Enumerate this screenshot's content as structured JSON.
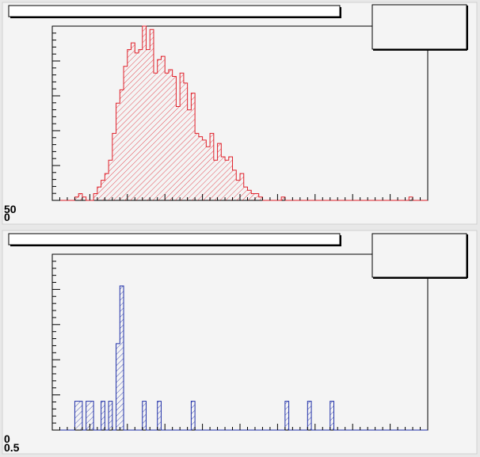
{
  "chart_data": [
    {
      "type": "histogram",
      "title": "",
      "xlabel": "",
      "ylabel": "",
      "fill_pattern": "diagonal-hatch",
      "color": "#e0202a",
      "legend": "top-right",
      "legend_text": "",
      "x_axis_labels_visible": false,
      "y_axis_labels": [
        "50",
        "0"
      ],
      "bin_count": 100,
      "ylim": [
        0,
        52
      ],
      "values": [
        0,
        0,
        0,
        0,
        0,
        0,
        1,
        2,
        1,
        0,
        0,
        2,
        4,
        6,
        8,
        12,
        20,
        29,
        33,
        40,
        45,
        47,
        44,
        45,
        52,
        45,
        51,
        38,
        42,
        43,
        38,
        39,
        37,
        28,
        38,
        35,
        27,
        32,
        20,
        19,
        18,
        16,
        20,
        12,
        17,
        13,
        12,
        13,
        9,
        6,
        8,
        4,
        3,
        2,
        2,
        1,
        0,
        0,
        0,
        0,
        0,
        1,
        0,
        0,
        0,
        0,
        0,
        0,
        0,
        0,
        0,
        0,
        0,
        0,
        0,
        0,
        0,
        0,
        0,
        0,
        0,
        0,
        0,
        0,
        0,
        0,
        0,
        0,
        0,
        0,
        0,
        0,
        0,
        0,
        0,
        1,
        0,
        0,
        0,
        0
      ]
    },
    {
      "type": "histogram",
      "title": "",
      "xlabel": "",
      "ylabel": "",
      "fill_pattern": "diagonal-hatch",
      "color": "#1f2fa8",
      "legend": "top-right",
      "legend_text": "",
      "x_axis_labels_visible": false,
      "y_axis_labels": [
        "0",
        "0.5"
      ],
      "bin_count": 100,
      "ylim": [
        0,
        6.1
      ],
      "values": [
        0,
        0,
        0,
        0,
        0,
        0,
        1,
        1,
        0,
        1,
        1,
        0,
        0,
        1,
        0,
        1,
        0,
        3,
        5,
        0,
        0,
        0,
        0,
        0,
        1,
        0,
        0,
        0,
        1,
        0,
        0,
        0,
        0,
        0,
        0,
        0,
        0,
        1,
        0,
        0,
        0,
        0,
        0,
        0,
        0,
        0,
        0,
        0,
        0,
        0,
        0,
        0,
        0,
        0,
        0,
        0,
        0,
        0,
        0,
        0,
        0,
        0,
        1,
        0,
        0,
        0,
        0,
        0,
        1,
        0,
        0,
        0,
        0,
        0,
        1,
        0,
        0,
        0,
        0,
        0,
        0,
        0,
        0,
        0,
        0,
        0,
        0,
        0,
        0,
        0,
        0,
        0,
        0,
        0,
        0,
        0,
        0,
        0,
        0,
        0
      ]
    }
  ]
}
